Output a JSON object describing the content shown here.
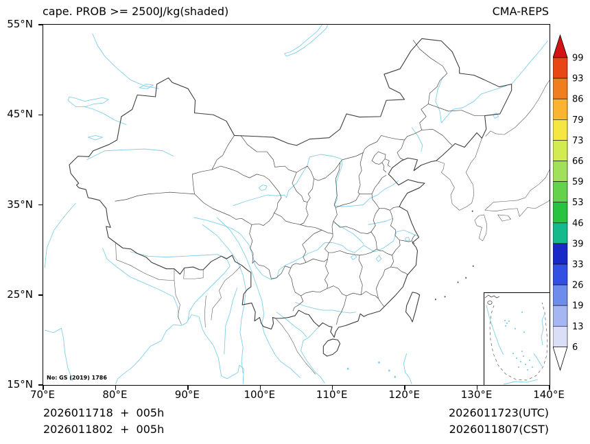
{
  "header": {
    "title": "cape. PROB >= 2500J/kg(shaded)",
    "model": "CMA-REPS"
  },
  "axes": {
    "x_ticks": [
      "70°E",
      "80°E",
      "90°E",
      "100°E",
      "110°E",
      "120°E",
      "130°E",
      "140°E"
    ],
    "y_ticks": [
      "55°N",
      "45°N",
      "35°N",
      "25°N",
      "15°N"
    ]
  },
  "colorbar": {
    "levels_top_to_bottom": [
      "99",
      "93",
      "86",
      "79",
      "73",
      "66",
      "59",
      "53",
      "46",
      "39",
      "33",
      "26",
      "19",
      "13",
      "6"
    ],
    "colors_top_to_bottom": [
      "#d21414",
      "#e84614",
      "#f07d1e",
      "#fab432",
      "#f5e641",
      "#d2eb50",
      "#a0e05a",
      "#64d24b",
      "#28c341",
      "#14b98c",
      "#1929c8",
      "#3250e1",
      "#6e8cec",
      "#a5b6f2",
      "#dadef7",
      "#ffffff"
    ]
  },
  "map": {
    "license_note": "No: GS (2019) 1786"
  },
  "footer": {
    "init_utc": "2026011718  +  005h",
    "init_cst": "2026011802  +  005h",
    "valid_utc": "2026011723(UTC)",
    "valid_cst": "2026011807(CST)"
  },
  "chart_data": {
    "type": "map",
    "title": "cape. PROB >= 2500J/kg(shaded)",
    "model": "CMA-REPS",
    "projection": "equidistant cylindrical",
    "lon_range_deg_east": [
      70,
      140
    ],
    "lat_range_deg_north": [
      15,
      55
    ],
    "probability_levels_percent": [
      6,
      13,
      19,
      26,
      33,
      39,
      46,
      53,
      59,
      66,
      73,
      79,
      86,
      93,
      99
    ],
    "shaded_regions": [],
    "note": "No probability shading present on the map; only China national/province boundaries, coastlines, rivers and the South China Sea inset are drawn."
  }
}
